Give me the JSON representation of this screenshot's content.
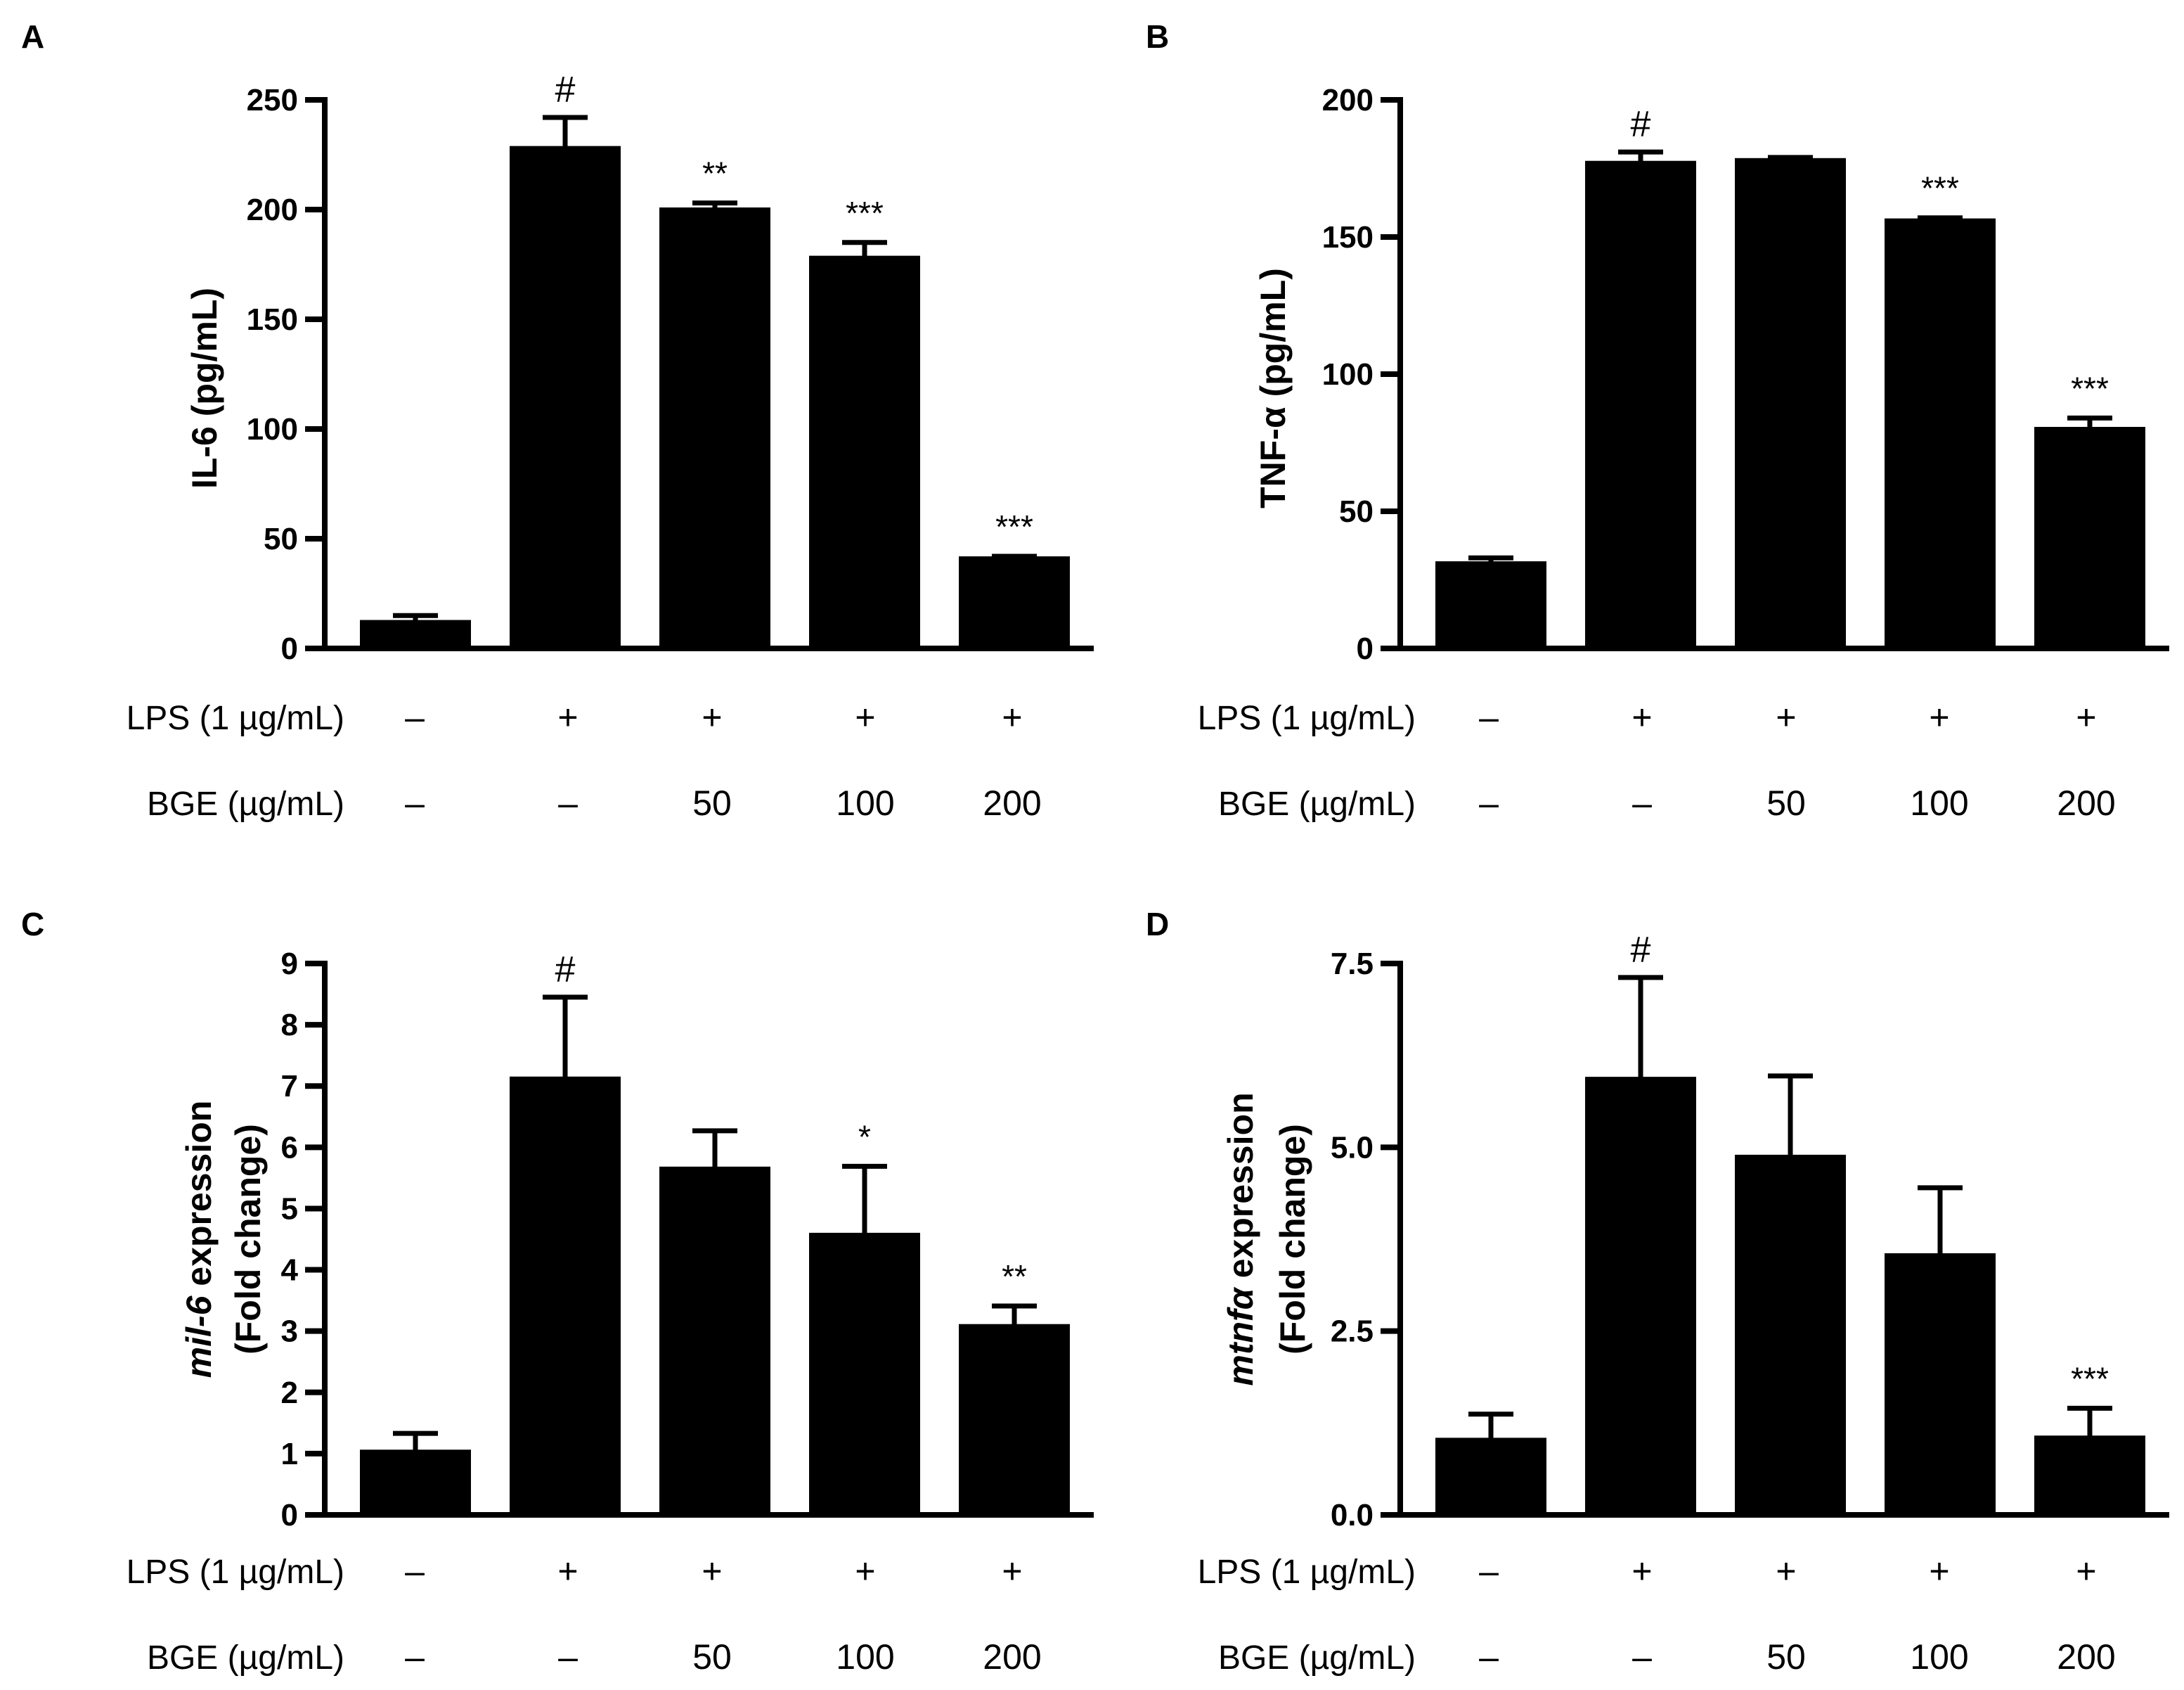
{
  "colors": {
    "bar": "#000000",
    "axis": "#000000",
    "background": "#ffffff"
  },
  "chart_data": [
    {
      "panel": "A",
      "type": "bar",
      "ylabel": "IL-6 (pg/mL)",
      "ylabel_italic": "",
      "ylabel_rest": "",
      "ylabel_line2": "",
      "ylim": [
        0,
        250
      ],
      "yticks": [
        0,
        50,
        100,
        150,
        200,
        250
      ],
      "yticks_labels": [
        "0",
        "50",
        "100",
        "150",
        "200",
        "250"
      ],
      "values": [
        12,
        228,
        200,
        178,
        41
      ],
      "errors": [
        3,
        14,
        3,
        7,
        1
      ],
      "annotations": [
        "",
        "#",
        "**",
        "***",
        "***"
      ],
      "rows": [
        {
          "label": "LPS (1 µg/mL)",
          "values": [
            "–",
            "+",
            "+",
            "+",
            "+"
          ]
        },
        {
          "label": "BGE (µg/mL)",
          "values": [
            "–",
            "–",
            "50",
            "100",
            "200"
          ]
        }
      ]
    },
    {
      "panel": "B",
      "type": "bar",
      "ylabel": "TNF-α   (pg/mL)",
      "ylabel_italic": "",
      "ylabel_rest": "",
      "ylabel_line2": "",
      "ylim": [
        0,
        200
      ],
      "yticks": [
        0,
        50,
        100,
        150,
        200
      ],
      "yticks_labels": [
        "0",
        "50",
        "100",
        "150",
        "200"
      ],
      "values": [
        31,
        177,
        178,
        156,
        80
      ],
      "errors": [
        2,
        4,
        1,
        1,
        4
      ],
      "annotations": [
        "",
        "#",
        "",
        "***",
        "***"
      ],
      "rows": [
        {
          "label": "LPS (1 µg/mL)",
          "values": [
            "–",
            "+",
            "+",
            "+",
            "+"
          ]
        },
        {
          "label": "BGE (µg/mL)",
          "values": [
            "–",
            "–",
            "50",
            "100",
            "200"
          ]
        }
      ]
    },
    {
      "panel": "C",
      "type": "bar",
      "ylabel": "",
      "ylabel_italic": "mil-6",
      "ylabel_rest": " expression",
      "ylabel_line2": "(Fold change)",
      "ylim": [
        0,
        9
      ],
      "yticks": [
        0,
        1,
        2,
        3,
        4,
        5,
        6,
        7,
        8,
        9
      ],
      "yticks_labels": [
        "0",
        "1",
        "2",
        "3",
        "4",
        "5",
        "6",
        "7",
        "8",
        "9"
      ],
      "values": [
        1.03,
        7.12,
        5.65,
        4.57,
        3.08
      ],
      "errors": [
        0.3,
        1.33,
        0.62,
        1.12,
        0.33
      ],
      "annotations": [
        "",
        "#",
        "",
        "*",
        "**"
      ],
      "rows": [
        {
          "label": "LPS (1 µg/mL)",
          "values": [
            "–",
            "+",
            "+",
            "+",
            "+"
          ]
        },
        {
          "label": "BGE (µg/mL)",
          "values": [
            "–",
            "–",
            "50",
            "100",
            "200"
          ]
        }
      ]
    },
    {
      "panel": "D",
      "type": "bar",
      "ylabel": "",
      "ylabel_italic": "mtnfα",
      "ylabel_rest": "   expression",
      "ylabel_line2": "(Fold change)",
      "ylim": [
        0,
        7.5
      ],
      "yticks": [
        0,
        2.5,
        5,
        7.5
      ],
      "yticks_labels": [
        "0.0",
        "2.5",
        "5.0",
        "7.5"
      ],
      "values": [
        1.02,
        5.93,
        4.87,
        3.53,
        1.05
      ],
      "errors": [
        0.35,
        1.38,
        1.1,
        0.92,
        0.4
      ],
      "annotations": [
        "",
        "#",
        "",
        "",
        "***"
      ],
      "rows": [
        {
          "label": "LPS (1 µg/mL)",
          "values": [
            "–",
            "+",
            "+",
            "+",
            "+"
          ]
        },
        {
          "label": "BGE (µg/mL)",
          "values": [
            "–",
            "–",
            "50",
            "100",
            "200"
          ]
        }
      ]
    }
  ]
}
